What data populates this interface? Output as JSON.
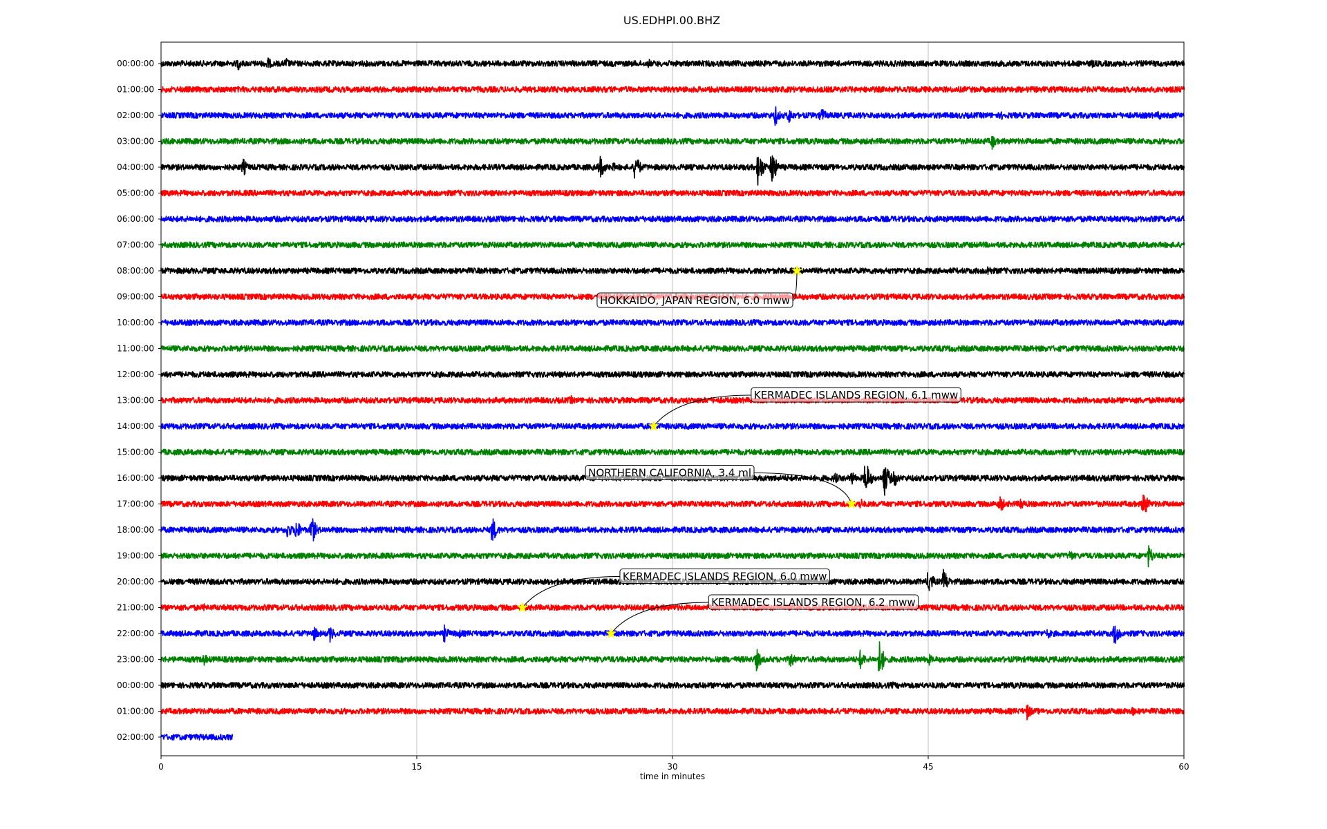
{
  "chart_data": {
    "type": "line",
    "title": "US.EDHPI.00.BHZ",
    "xlabel": "time in minutes",
    "ylabel": "",
    "xlim": [
      0,
      60
    ],
    "x_ticks": [
      "0",
      "15",
      "30",
      "45",
      "60"
    ],
    "grid": "vertical",
    "colors": [
      "#000000",
      "#ff0000",
      "#0000ff",
      "#008000"
    ],
    "rows": [
      {
        "label": "00:00:00",
        "end_minute": 60,
        "bursts": [
          {
            "t": 4.5,
            "a": 10
          },
          {
            "t": 6.2,
            "a": 12
          },
          {
            "t": 7.3,
            "a": 10
          },
          {
            "t": 28.6,
            "a": 7
          },
          {
            "t": 54.6,
            "a": 7
          }
        ]
      },
      {
        "label": "01:00:00",
        "end_minute": 60,
        "bursts": []
      },
      {
        "label": "02:00:00",
        "end_minute": 60,
        "bursts": [
          {
            "t": 36.0,
            "a": 16
          },
          {
            "t": 36.8,
            "a": 14
          },
          {
            "t": 38.7,
            "a": 14
          },
          {
            "t": 49.3,
            "a": 7
          },
          {
            "t": 58.5,
            "a": 9
          }
        ]
      },
      {
        "label": "03:00:00",
        "end_minute": 60,
        "bursts": [
          {
            "t": 48.7,
            "a": 14
          }
        ]
      },
      {
        "label": "04:00:00",
        "end_minute": 60,
        "bursts": [
          {
            "t": 4.8,
            "a": 14
          },
          {
            "t": 25.7,
            "a": 22
          },
          {
            "t": 26.5,
            "a": 8
          },
          {
            "t": 27.8,
            "a": 22
          },
          {
            "t": 35.0,
            "a": 30
          },
          {
            "t": 35.8,
            "a": 30
          }
        ]
      },
      {
        "label": "05:00:00",
        "end_minute": 60,
        "bursts": []
      },
      {
        "label": "06:00:00",
        "end_minute": 60,
        "bursts": []
      },
      {
        "label": "07:00:00",
        "end_minute": 60,
        "bursts": []
      },
      {
        "label": "08:00:00",
        "end_minute": 60,
        "bursts": [
          {
            "t": 48.5,
            "a": 10
          }
        ]
      },
      {
        "label": "09:00:00",
        "end_minute": 60,
        "bursts": []
      },
      {
        "label": "10:00:00",
        "end_minute": 60,
        "bursts": []
      },
      {
        "label": "11:00:00",
        "end_minute": 60,
        "bursts": []
      },
      {
        "label": "12:00:00",
        "end_minute": 60,
        "bursts": []
      },
      {
        "label": "13:00:00",
        "end_minute": 60,
        "bursts": [
          {
            "t": 24.0,
            "a": 8
          }
        ]
      },
      {
        "label": "14:00:00",
        "end_minute": 60,
        "bursts": []
      },
      {
        "label": "15:00:00",
        "end_minute": 60,
        "bursts": []
      },
      {
        "label": "16:00:00",
        "end_minute": 60,
        "bursts": [
          {
            "t": 39.5,
            "a": 10
          },
          {
            "t": 40.5,
            "a": 12
          },
          {
            "t": 41.3,
            "a": 28
          },
          {
            "t": 42.4,
            "a": 30
          },
          {
            "t": 43.0,
            "a": 14
          }
        ]
      },
      {
        "label": "17:00:00",
        "end_minute": 60,
        "bursts": [
          {
            "t": 41.0,
            "a": 10
          },
          {
            "t": 49.2,
            "a": 14
          },
          {
            "t": 50.4,
            "a": 12
          },
          {
            "t": 57.6,
            "a": 22
          }
        ]
      },
      {
        "label": "18:00:00",
        "end_minute": 60,
        "bursts": [
          {
            "t": 7.4,
            "a": 14
          },
          {
            "t": 7.9,
            "a": 18
          },
          {
            "t": 8.8,
            "a": 24
          },
          {
            "t": 19.4,
            "a": 22
          }
        ]
      },
      {
        "label": "19:00:00",
        "end_minute": 60,
        "bursts": [
          {
            "t": 53.3,
            "a": 10
          },
          {
            "t": 57.9,
            "a": 18
          }
        ]
      },
      {
        "label": "20:00:00",
        "end_minute": 60,
        "bursts": [
          {
            "t": 45.0,
            "a": 20
          },
          {
            "t": 45.9,
            "a": 20
          }
        ]
      },
      {
        "label": "21:00:00",
        "end_minute": 60,
        "bursts": [
          {
            "t": 2.5,
            "a": 6
          },
          {
            "t": 8.0,
            "a": 6
          }
        ]
      },
      {
        "label": "22:00:00",
        "end_minute": 60,
        "bursts": [
          {
            "t": 8.9,
            "a": 14
          },
          {
            "t": 9.9,
            "a": 14
          },
          {
            "t": 16.6,
            "a": 14
          },
          {
            "t": 17.4,
            "a": 10
          },
          {
            "t": 52.0,
            "a": 9
          },
          {
            "t": 55.9,
            "a": 20
          }
        ]
      },
      {
        "label": "23:00:00",
        "end_minute": 60,
        "bursts": [
          {
            "t": 2.5,
            "a": 10
          },
          {
            "t": 34.9,
            "a": 18
          },
          {
            "t": 36.9,
            "a": 14
          },
          {
            "t": 41.0,
            "a": 16
          },
          {
            "t": 42.1,
            "a": 30
          },
          {
            "t": 45.0,
            "a": 10
          }
        ]
      },
      {
        "label": "00:00:00",
        "end_minute": 60,
        "bursts": [
          {
            "t": 42.9,
            "a": 6
          }
        ]
      },
      {
        "label": "01:00:00",
        "end_minute": 60,
        "bursts": [
          {
            "t": 50.8,
            "a": 14
          },
          {
            "t": 56.9,
            "a": 10
          }
        ]
      },
      {
        "label": "02:00:00",
        "end_minute": 4.2,
        "bursts": []
      }
    ],
    "events": [
      {
        "text": "HOKKAIDO, JAPAN REGION, 6.0 mww",
        "row": 8,
        "minute": 37.3
      },
      {
        "text": "KERMADEC ISLANDS REGION, 6.1 mww",
        "row": 14,
        "minute": 28.9
      },
      {
        "text": "NORTHERN CALIFORNIA, 3.4 ml",
        "row": 17,
        "minute": 40.5
      },
      {
        "text": "KERMADEC ISLANDS REGION, 6.0 mww",
        "row": 21,
        "minute": 21.2
      },
      {
        "text": "KERMADEC ISLANDS REGION, 6.2 mww",
        "row": 22,
        "minute": 26.4
      }
    ]
  }
}
